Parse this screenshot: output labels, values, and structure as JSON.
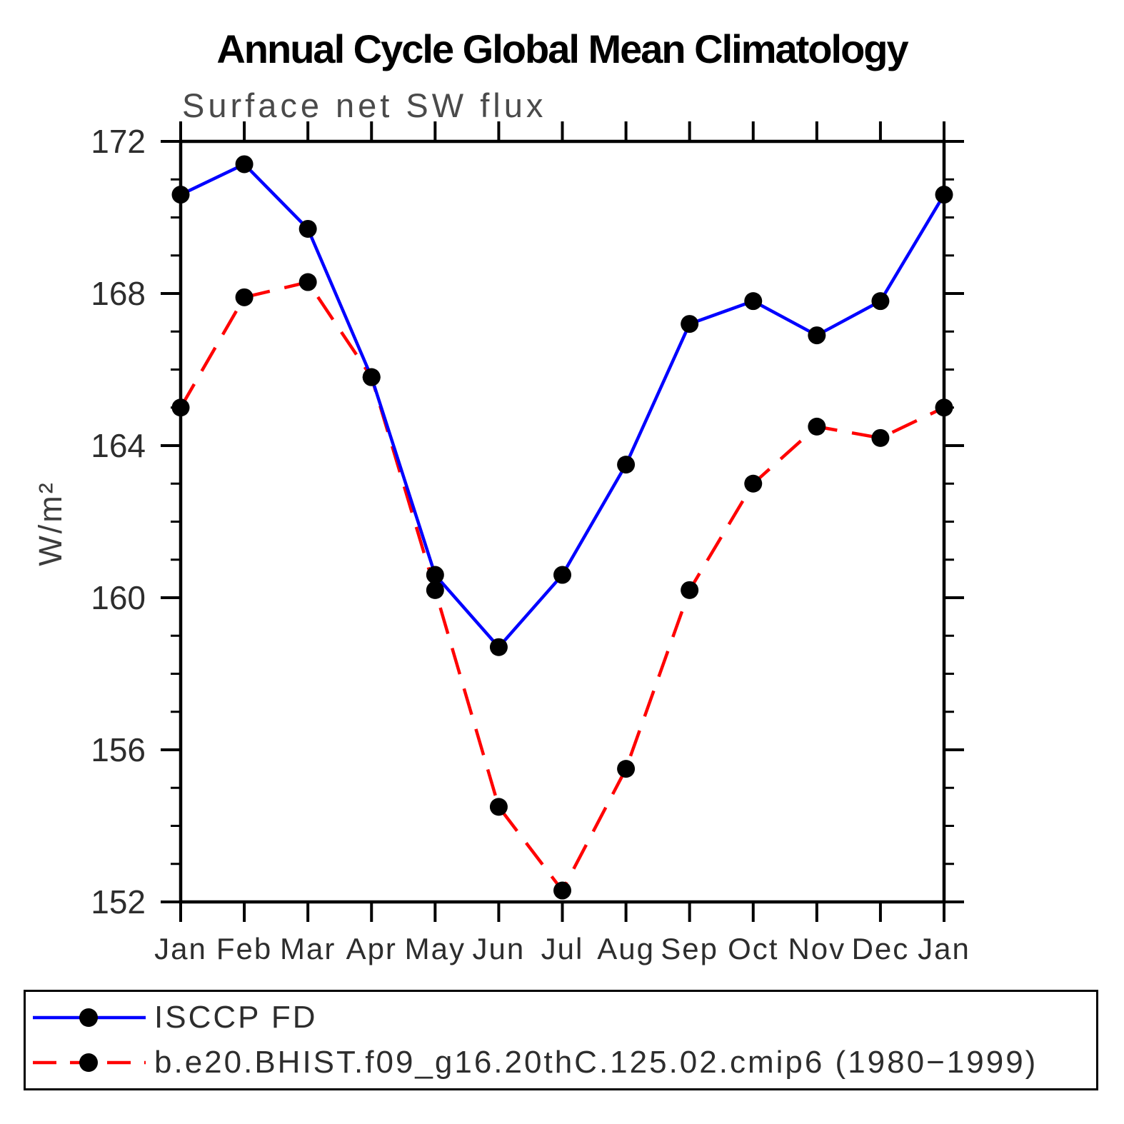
{
  "chart_data": {
    "type": "line",
    "title": "Annual Cycle Global Mean Climatology",
    "subtitle": "Surface net SW flux",
    "ylabel": "W/m²",
    "xlabel": "",
    "categories": [
      "Jan",
      "Feb",
      "Mar",
      "Apr",
      "May",
      "Jun",
      "Jul",
      "Aug",
      "Sep",
      "Oct",
      "Nov",
      "Dec",
      "Jan"
    ],
    "ylim": [
      152,
      172
    ],
    "y_major_ticks": [
      152,
      156,
      160,
      164,
      168,
      172
    ],
    "y_minor_step": 1,
    "grid": false,
    "legend_position": "bottom",
    "axis_color": "#000000",
    "marker": "circle",
    "marker_color": "#000000",
    "series": [
      {
        "name": "ISCCP FD",
        "color": "#0000ff",
        "line_style": "solid",
        "values": [
          170.6,
          171.4,
          169.7,
          165.8,
          160.6,
          158.7,
          160.6,
          163.5,
          167.2,
          167.8,
          166.9,
          167.8,
          170.6
        ]
      },
      {
        "name": "b.e20.BHIST.f09_g16.20thC.125.02.cmip6 (1980−1999)",
        "color": "#ff0000",
        "line_style": "dashed",
        "values": [
          165.0,
          167.9,
          168.3,
          165.8,
          160.2,
          154.5,
          152.3,
          155.5,
          160.2,
          163.0,
          164.5,
          164.2,
          165.0
        ]
      }
    ]
  }
}
